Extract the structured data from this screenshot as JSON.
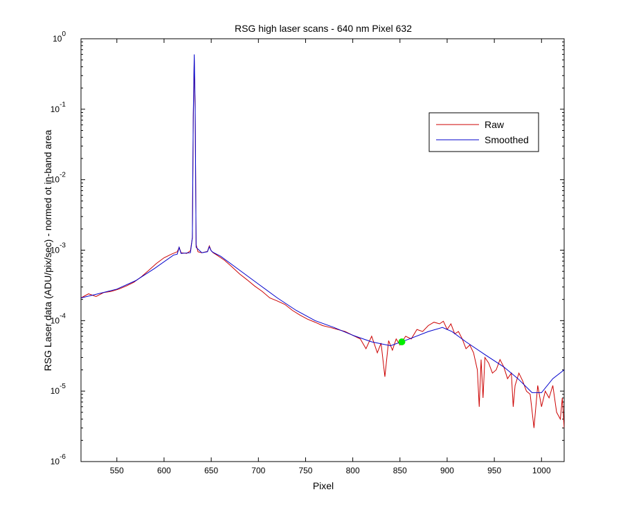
{
  "chart_data": {
    "type": "line",
    "title": "RSG high laser scans  - 640 nm    Pixel 632",
    "xlabel": "Pixel",
    "ylabel": "RSG Laser data (ADU/pix/sec) - normed ot in-band area",
    "xlim": [
      512,
      1024
    ],
    "ylim": [
      1e-06,
      1
    ],
    "y_scale": "log",
    "x_ticks": [
      550,
      600,
      650,
      700,
      750,
      800,
      850,
      900,
      950,
      1000
    ],
    "y_ticks": [
      {
        "exp": -6,
        "base": "10",
        "sup": "-6"
      },
      {
        "exp": -5,
        "base": "10",
        "sup": "-5"
      },
      {
        "exp": -4,
        "base": "10",
        "sup": "-4"
      },
      {
        "exp": -3,
        "base": "10",
        "sup": "-3"
      },
      {
        "exp": -2,
        "base": "10",
        "sup": "-2"
      },
      {
        "exp": -1,
        "base": "10",
        "sup": "-1"
      },
      {
        "exp": 0,
        "base": "10",
        "sup": "0"
      }
    ],
    "legend": {
      "location": "upper-right",
      "entries": [
        "Raw",
        "Smoothed"
      ]
    },
    "series": [
      {
        "name": "Raw",
        "color": "#cc0000",
        "x": [
          512,
          520,
          528,
          536,
          544,
          552,
          560,
          568,
          576,
          584,
          592,
          600,
          608,
          614,
          616,
          618,
          624,
          628,
          630,
          631,
          632,
          633,
          634,
          636,
          640,
          646,
          648,
          650,
          652,
          656,
          664,
          672,
          680,
          688,
          696,
          704,
          712,
          720,
          728,
          736,
          744,
          752,
          760,
          768,
          776,
          784,
          792,
          800,
          808,
          814,
          820,
          826,
          830,
          834,
          838,
          842,
          846,
          850,
          856,
          862,
          868,
          874,
          880,
          886,
          892,
          896,
          900,
          904,
          908,
          912,
          916,
          920,
          924,
          928,
          932,
          934,
          936,
          938,
          940,
          944,
          948,
          952,
          956,
          960,
          964,
          968,
          970,
          972,
          976,
          980,
          984,
          988,
          992,
          996,
          1000,
          1004,
          1008,
          1012,
          1016,
          1020,
          1022,
          1024
        ],
        "y": [
          0.00021,
          0.00024,
          0.00022,
          0.00025,
          0.00026,
          0.00028,
          0.00031,
          0.00035,
          0.00042,
          0.00052,
          0.00065,
          0.00078,
          0.00088,
          0.00095,
          0.0011,
          0.00092,
          0.0009,
          0.00098,
          0.0015,
          0.07,
          0.5,
          0.09,
          0.0012,
          0.00095,
          0.00092,
          0.00096,
          0.00115,
          0.00098,
          0.00092,
          0.00085,
          0.00072,
          0.00058,
          0.00046,
          0.00038,
          0.00031,
          0.00026,
          0.00021,
          0.00019,
          0.00017,
          0.00014,
          0.00012,
          0.000105,
          9.5e-05,
          8.5e-05,
          8e-05,
          7.5e-05,
          7e-05,
          6.2e-05,
          5.5e-05,
          4e-05,
          6e-05,
          3.5e-05,
          4.8e-05,
          1.6e-05,
          5.2e-05,
          3.8e-05,
          5.5e-05,
          4.5e-05,
          6e-05,
          5.5e-05,
          7.5e-05,
          7e-05,
          8.5e-05,
          9.5e-05,
          9e-05,
          9.8e-05,
          7.5e-05,
          9e-05,
          6.5e-05,
          7e-05,
          5.5e-05,
          4e-05,
          4.5e-05,
          3.5e-05,
          2e-05,
          6e-06,
          2.8e-05,
          8e-06,
          3e-05,
          2.5e-05,
          1.8e-05,
          2e-05,
          2.8e-05,
          2.2e-05,
          1.5e-05,
          1.8e-05,
          6e-06,
          1.2e-05,
          1.8e-05,
          1.4e-05,
          1e-05,
          9e-06,
          3e-06,
          1.2e-05,
          6e-06,
          1e-05,
          8e-06,
          1.2e-05,
          5e-06,
          4e-06,
          8e-06,
          3e-06
        ]
      },
      {
        "name": "Smoothed",
        "color": "#0000cc",
        "x": [
          512,
          530,
          550,
          570,
          590,
          610,
          614,
          616,
          618,
          628,
          630,
          631,
          632,
          633,
          634,
          640,
          646,
          648,
          650,
          652,
          660,
          680,
          700,
          720,
          740,
          760,
          780,
          800,
          820,
          840,
          860,
          880,
          895,
          905,
          920,
          940,
          960,
          975,
          990,
          1000,
          1012,
          1024
        ],
        "y": [
          0.00021,
          0.00024,
          0.00028,
          0.00037,
          0.00055,
          0.00085,
          0.00088,
          0.0011,
          0.0009,
          0.00092,
          0.0015,
          0.08,
          0.6,
          0.1,
          0.0011,
          0.00092,
          0.00095,
          0.00112,
          0.00098,
          0.00093,
          0.00082,
          0.00052,
          0.00033,
          0.00021,
          0.00014,
          0.0001,
          8e-05,
          6.2e-05,
          5e-05,
          4.4e-05,
          5.5e-05,
          7e-05,
          8e-05,
          7e-05,
          5e-05,
          3.3e-05,
          2.2e-05,
          1.5e-05,
          9.5e-06,
          9.5e-06,
          1.5e-05,
          2e-05
        ]
      }
    ],
    "markers": [
      {
        "x": 852,
        "y": 5e-05,
        "color": "#00ee00"
      }
    ]
  }
}
